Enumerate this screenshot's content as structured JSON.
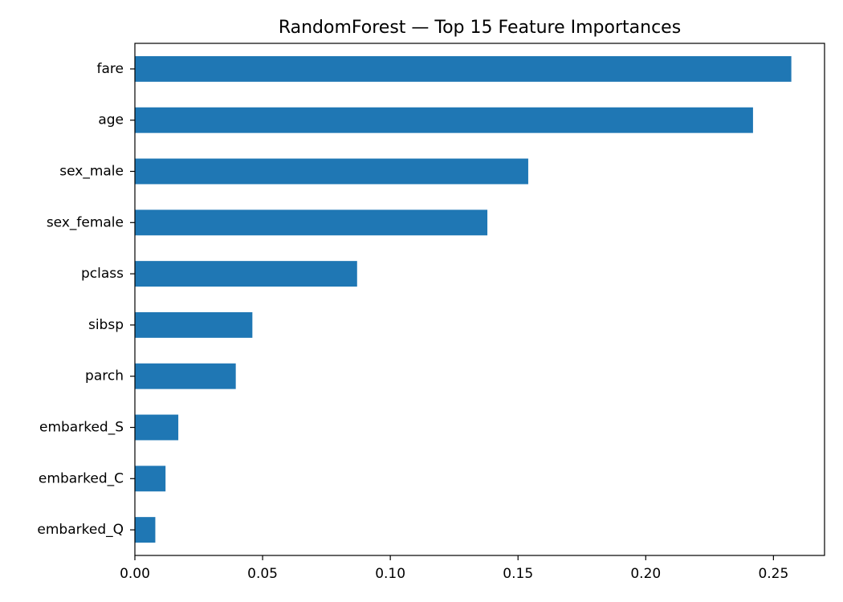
{
  "chart_data": {
    "type": "bar",
    "orientation": "horizontal",
    "title": "RandomForest — Top 15 Feature Importances",
    "xlabel": "",
    "ylabel": "",
    "categories": [
      "fare",
      "age",
      "sex_male",
      "sex_female",
      "pclass",
      "sibsp",
      "parch",
      "embarked_S",
      "embarked_C",
      "embarked_Q"
    ],
    "values": [
      0.257,
      0.242,
      0.154,
      0.138,
      0.087,
      0.046,
      0.0395,
      0.017,
      0.012,
      0.008
    ],
    "xlim": [
      0,
      0.27
    ],
    "xticks": [
      0.0,
      0.05,
      0.1,
      0.15,
      0.2,
      0.25
    ],
    "xtick_labels": [
      "0.00",
      "0.05",
      "0.10",
      "0.15",
      "0.20",
      "0.25"
    ],
    "bar_color": "#1f77b4",
    "grid": false,
    "legend": "none"
  }
}
